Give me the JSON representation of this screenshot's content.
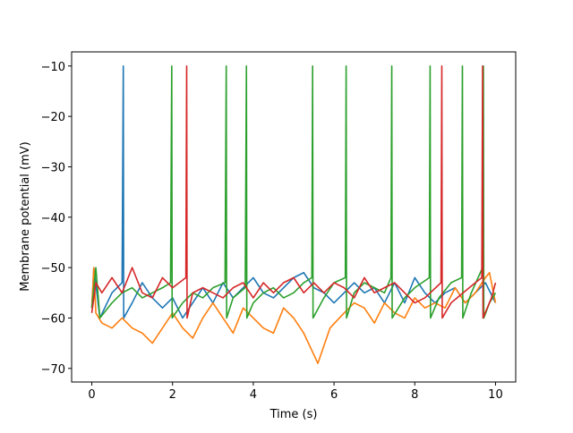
{
  "chart_data": {
    "type": "line",
    "xlabel": "Time (s)",
    "ylabel": "Membrane potential (mV)",
    "xlim": [
      -0.5,
      10.5
    ],
    "ylim": [
      -72.7,
      -7.2
    ],
    "xticks": [
      0,
      2,
      4,
      6,
      8,
      10
    ],
    "yticks": [
      {
        "value": -70,
        "label": "−70"
      },
      {
        "value": -60,
        "label": "−60"
      },
      {
        "value": -50,
        "label": "−50"
      },
      {
        "value": -40,
        "label": "−40"
      },
      {
        "value": -30,
        "label": "−30"
      },
      {
        "value": -20,
        "label": "−20"
      },
      {
        "value": -10,
        "label": "−10"
      }
    ],
    "series": [
      {
        "color": "#1f77b4",
        "x": [
          0,
          0.05,
          0.2,
          0.5,
          0.75,
          0.78,
          0.79,
          1,
          1.25,
          1.5,
          1.75,
          2,
          2.25,
          2.5,
          2.75,
          3,
          3.25,
          3.5,
          3.75,
          4,
          4.25,
          4.5,
          4.75,
          5,
          5.25,
          5.5,
          5.75,
          6,
          6.25,
          6.5,
          6.75,
          7,
          7.25,
          7.5,
          7.75,
          8,
          8.25,
          8.5,
          8.75,
          9,
          9.25,
          9.5,
          9.75,
          10
        ],
        "values": [
          -58,
          -50,
          -60,
          -55,
          -53,
          -10,
          -60,
          -57,
          -53,
          -56,
          -58,
          -56,
          -60,
          -57,
          -54,
          -57,
          -53,
          -56,
          -54,
          -52,
          -55,
          -56,
          -54,
          -52,
          -51,
          -54,
          -55,
          -57,
          -55,
          -53,
          -55,
          -54,
          -57,
          -53,
          -57,
          -52,
          -55,
          -57,
          -55,
          -54,
          -57,
          -55,
          -53,
          -57
        ]
      },
      {
        "color": "#ff7f0e",
        "x": [
          0,
          0.05,
          0.1,
          0.25,
          0.5,
          0.75,
          1,
          1.25,
          1.5,
          1.75,
          2,
          2.25,
          2.5,
          2.75,
          3,
          3.25,
          3.5,
          3.75,
          4,
          4.25,
          4.5,
          4.75,
          5,
          5.25,
          5.6,
          5.9,
          6.25,
          6.5,
          6.75,
          7,
          7.25,
          7.5,
          7.75,
          8,
          8.25,
          8.5,
          8.75,
          9,
          9.25,
          9.5,
          9.75,
          9.85,
          10
        ],
        "values": [
          -58,
          -50,
          -59,
          -61,
          -62,
          -60,
          -62,
          -63,
          -65,
          -62,
          -59,
          -62,
          -64,
          -60,
          -57,
          -60,
          -63,
          -58,
          -60,
          -62,
          -63,
          -58,
          -60,
          -63,
          -69,
          -62,
          -59,
          -57,
          -58,
          -61,
          -57,
          -59,
          -60,
          -56,
          -58,
          -57,
          -58,
          -54,
          -57,
          -55,
          -52,
          -51,
          -57
        ]
      },
      {
        "color": "#2ca02c",
        "x": [
          0,
          0.1,
          0.2,
          0.5,
          0.75,
          1,
          1.25,
          1.5,
          1.75,
          1.95,
          1.98,
          1.99,
          2.25,
          2.5,
          2.75,
          3,
          3.3,
          3.33,
          3.34,
          3.5,
          3.8,
          3.83,
          3.84,
          4,
          4.25,
          4.5,
          4.75,
          5,
          5.25,
          5.45,
          5.47,
          5.48,
          5.75,
          6,
          6.28,
          6.3,
          6.31,
          6.5,
          6.75,
          7,
          7.25,
          7.41,
          7.43,
          7.44,
          7.75,
          8,
          8.36,
          8.38,
          8.39,
          8.6,
          8.9,
          9.16,
          9.18,
          9.19,
          9.4,
          9.68,
          9.7,
          9.71,
          9.85,
          10
        ],
        "values": [
          -58,
          -50,
          -60,
          -57,
          -55,
          -54,
          -56,
          -55,
          -54,
          -53,
          -10,
          -60,
          -57,
          -55,
          -56,
          -54,
          -53,
          -10,
          -60,
          -56,
          -54,
          -10,
          -60,
          -57,
          -55,
          -54,
          -56,
          -55,
          -53,
          -52,
          -10,
          -60,
          -56,
          -53,
          -52,
          -10,
          -60,
          -55,
          -53,
          -54,
          -55,
          -52,
          -10,
          -60,
          -56,
          -54,
          -52,
          -10,
          -60,
          -56,
          -53,
          -52,
          -10,
          -60,
          -55,
          -50,
          -10,
          -60,
          -57,
          -55
        ]
      },
      {
        "color": "#d62728",
        "x": [
          0,
          0.1,
          0.25,
          0.5,
          0.75,
          1,
          1.25,
          1.5,
          1.75,
          2,
          2.33,
          2.35,
          2.36,
          2.5,
          2.75,
          3,
          3.25,
          3.5,
          3.75,
          4,
          4.25,
          4.5,
          4.75,
          5,
          5.25,
          5.5,
          5.75,
          6,
          6.25,
          6.5,
          6.75,
          7,
          7.25,
          7.5,
          7.75,
          8,
          8.25,
          8.65,
          8.67,
          8.68,
          8.9,
          9.2,
          9.5,
          9.66,
          9.68,
          9.69,
          9.9,
          10
        ],
        "values": [
          -59,
          -53,
          -55,
          -52,
          -55,
          -50,
          -55,
          -56,
          -52,
          -54,
          -52,
          -10,
          -60,
          -55,
          -54,
          -55,
          -56,
          -54,
          -53,
          -56,
          -53,
          -55,
          -53,
          -52,
          -55,
          -53,
          -55,
          -53,
          -54,
          -56,
          -52,
          -55,
          -54,
          -53,
          -55,
          -57,
          -56,
          -53,
          -10,
          -60,
          -57,
          -55,
          -53,
          -52,
          -10,
          -60,
          -56,
          -53
        ]
      }
    ]
  }
}
